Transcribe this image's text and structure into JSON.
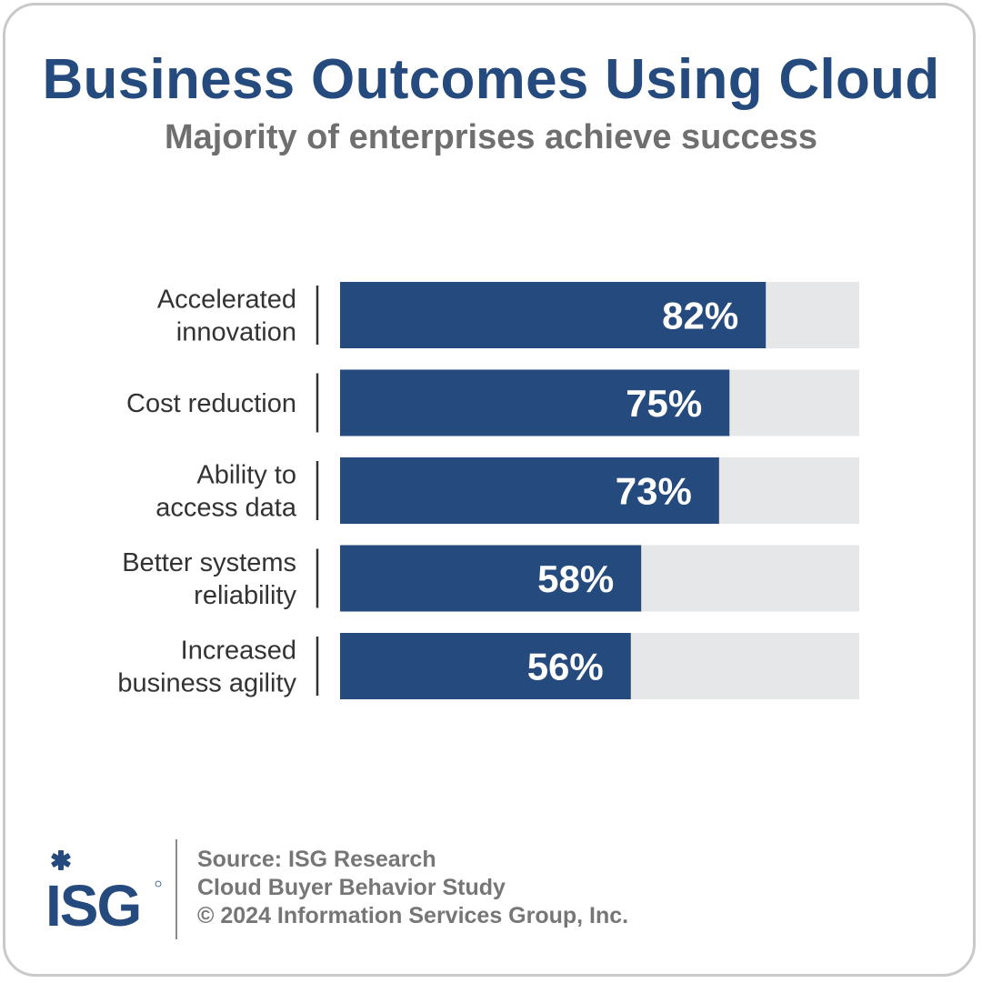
{
  "title": "Business Outcomes Using Cloud",
  "subtitle": "Majority of enterprises achieve success",
  "colors": {
    "bar": "#254a7d",
    "track": "#e6e7e8",
    "title": "#254a7d",
    "subtitle": "#6f6f6f",
    "label": "#333333",
    "source": "#767676"
  },
  "chart_data": {
    "type": "bar",
    "orientation": "horizontal",
    "categories": [
      [
        "Accelerated",
        "innovation"
      ],
      [
        "Cost reduction"
      ],
      [
        "Ability to",
        "access data"
      ],
      [
        "Better systems",
        "reliability"
      ],
      [
        "Increased",
        "business agility"
      ]
    ],
    "values": [
      82,
      75,
      73,
      58,
      56
    ],
    "value_labels": [
      "82%",
      "75%",
      "73%",
      "58%",
      "56%"
    ],
    "xlim": [
      0,
      100
    ],
    "grid": false,
    "legend": "none"
  },
  "footer": {
    "logo_text": "ISG",
    "logo_icon": "asterisk-icon",
    "source_lines": [
      "Source: ISG Research",
      "Cloud Buyer Behavior Study",
      "© 2024 Information Services Group, Inc."
    ]
  }
}
